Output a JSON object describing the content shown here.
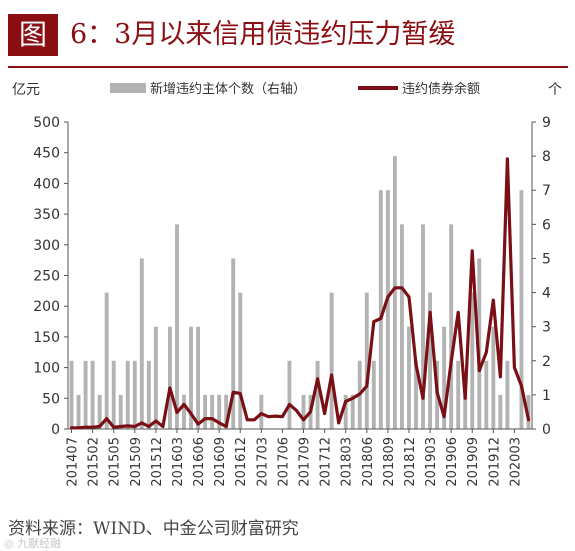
{
  "header": {
    "badge": "图",
    "title": "6：3月以来信用债违约压力暂缓"
  },
  "source": "资料来源：WIND、中金公司财富研究",
  "watermark": "◎ 九獸经融",
  "colors": {
    "accent": "#8b0e13",
    "bar": "#b3b3b3",
    "line": "#7a1016",
    "axis": "#555555"
  },
  "chart_data": {
    "type": "bar+line",
    "left_unit": "亿元",
    "right_unit": "个",
    "ylim_left": [
      0,
      500
    ],
    "ylim_right": [
      0,
      9
    ],
    "left_ticks": [
      0,
      50,
      100,
      150,
      200,
      250,
      300,
      350,
      400,
      450,
      500
    ],
    "right_ticks": [
      0,
      1,
      2,
      3,
      4,
      5,
      6,
      7,
      8,
      9
    ],
    "legend": {
      "bar": "新增违约主体个数（右轴）",
      "line": "违约债券余额",
      "position": "top"
    },
    "x_tick_labels": [
      "201407",
      "201502",
      "201505",
      "201509",
      "201512",
      "201603",
      "201606",
      "201609",
      "201612",
      "201703",
      "201706",
      "201709",
      "201712",
      "201803",
      "201806",
      "201809",
      "201812",
      "201903",
      "201906",
      "201909",
      "201912",
      "202003"
    ],
    "x_tick_index": [
      0,
      3,
      6,
      9,
      12,
      15,
      18,
      21,
      24,
      27,
      30,
      33,
      36,
      39,
      42,
      45,
      48,
      51,
      54,
      57,
      60,
      63
    ],
    "series": [
      {
        "name": "新增违约主体个数（右轴）",
        "axis": "right",
        "values": [
          2,
          1,
          2,
          2,
          1,
          4,
          2,
          1,
          2,
          2,
          5,
          2,
          3,
          0,
          3,
          6,
          1,
          3,
          3,
          1,
          1,
          1,
          1,
          5,
          4,
          0,
          0,
          1,
          0,
          0,
          0,
          2,
          0,
          1,
          1,
          2,
          0,
          4,
          0,
          1,
          1,
          2,
          4,
          2,
          7,
          7,
          8,
          6,
          3,
          2,
          6,
          4,
          2,
          3,
          6,
          2,
          1,
          4,
          5,
          2,
          3,
          1,
          2,
          0,
          7,
          1
        ]
      },
      {
        "name": "违约债券余额",
        "axis": "left",
        "values": [
          2,
          2,
          3,
          3,
          4,
          17,
          3,
          4,
          5,
          4,
          10,
          4,
          13,
          4,
          67,
          27,
          40,
          25,
          8,
          17,
          17,
          10,
          4,
          60,
          58,
          15,
          15,
          25,
          20,
          21,
          20,
          40,
          30,
          15,
          28,
          82,
          25,
          88,
          10,
          45,
          50,
          57,
          70,
          175,
          180,
          215,
          230,
          230,
          215,
          105,
          50,
          190,
          60,
          20,
          110,
          190,
          50,
          290,
          95,
          125,
          210,
          85,
          440,
          100,
          70,
          15
        ]
      }
    ]
  }
}
